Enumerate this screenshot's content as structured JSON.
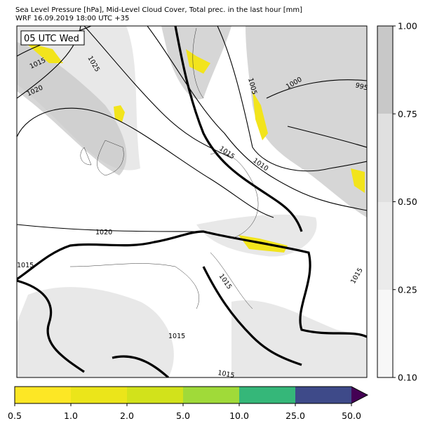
{
  "header": {
    "title": "Sea Level Pressure [hPa], Mid-Level Cloud Cover, Total prec. in the last hour [mm]",
    "subtitle": "WRF 16.09.2019 18:00 UTC +35"
  },
  "map": {
    "time_label": "05 UTC Wed",
    "contour_labels": [
      "1015",
      "1025",
      "1020",
      "1005",
      "1000",
      "995",
      "1015",
      "1010",
      "1020",
      "1015",
      "1015",
      "1015",
      "1015",
      "1015"
    ]
  },
  "cloud_colorbar": {
    "ticks": [
      "0.10",
      "0.25",
      "0.50",
      "0.75",
      "1.00"
    ]
  },
  "precip_colorbar": {
    "ticks": [
      "0.5",
      "1.0",
      "2.0",
      "5.0",
      "10.0",
      "25.0",
      "50.0"
    ]
  }
}
